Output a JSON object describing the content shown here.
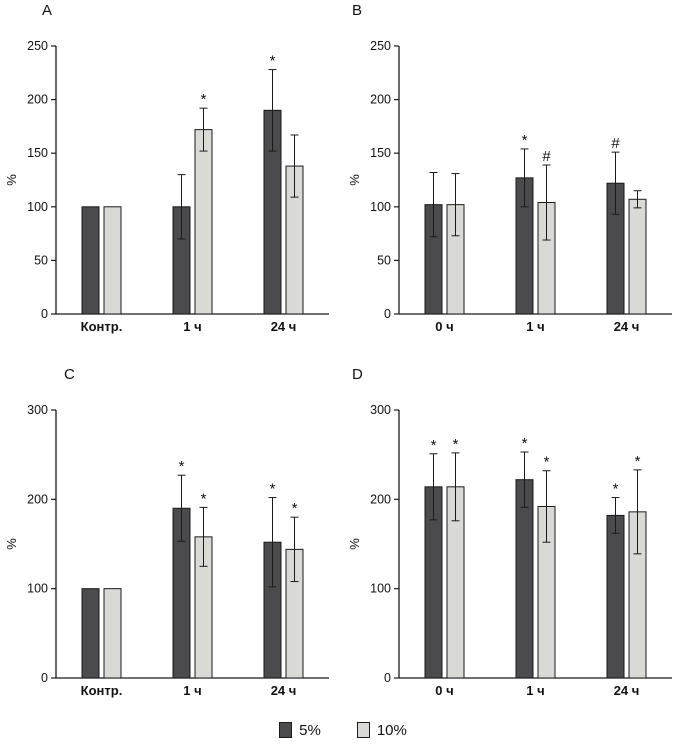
{
  "legend": {
    "items": [
      {
        "label": "5%",
        "color": "#4b4b4d"
      },
      {
        "label": "10%",
        "color": "#d9d9d6"
      }
    ]
  },
  "chart_data": [
    {
      "panel": "A",
      "type": "bar",
      "categories": [
        "Контр.",
        "1 ч",
        "24 ч"
      ],
      "ylabel": "%",
      "ylim": [
        0,
        250
      ],
      "yticks": [
        0,
        50,
        100,
        150,
        200,
        250
      ],
      "grid": false,
      "legend_position": "bottom",
      "series": [
        {
          "name": "5%",
          "color": "#4b4b4d",
          "values": [
            100,
            100,
            190
          ],
          "errors": [
            0,
            30,
            38
          ],
          "markers": [
            "",
            "",
            "*"
          ]
        },
        {
          "name": "10%",
          "color": "#d9d9d6",
          "values": [
            100,
            172,
            138
          ],
          "errors": [
            0,
            20,
            29
          ],
          "markers": [
            "",
            "*",
            ""
          ]
        }
      ]
    },
    {
      "panel": "B",
      "type": "bar",
      "categories": [
        "0 ч",
        "1 ч",
        "24 ч"
      ],
      "ylabel": "%",
      "ylim": [
        0,
        250
      ],
      "yticks": [
        0,
        50,
        100,
        150,
        200,
        250
      ],
      "grid": false,
      "legend_position": "bottom",
      "series": [
        {
          "name": "5%",
          "color": "#4b4b4d",
          "values": [
            102,
            127,
            122
          ],
          "errors": [
            30,
            27,
            29
          ],
          "markers": [
            "",
            "*",
            "#"
          ]
        },
        {
          "name": "10%",
          "color": "#d9d9d6",
          "values": [
            102,
            104,
            107
          ],
          "errors": [
            29,
            35,
            8
          ],
          "markers": [
            "",
            "#",
            ""
          ]
        }
      ]
    },
    {
      "panel": "C",
      "type": "bar",
      "categories": [
        "Контр.",
        "1 ч",
        "24 ч"
      ],
      "ylabel": "%",
      "ylim": [
        0,
        300
      ],
      "yticks": [
        0,
        100,
        200,
        300
      ],
      "grid": false,
      "legend_position": "bottom",
      "series": [
        {
          "name": "5%",
          "color": "#4b4b4d",
          "values": [
            100,
            190,
            152
          ],
          "errors": [
            0,
            37,
            50
          ],
          "markers": [
            "",
            "*",
            "*"
          ]
        },
        {
          "name": "10%",
          "color": "#d9d9d6",
          "values": [
            100,
            158,
            144
          ],
          "errors": [
            0,
            33,
            36
          ],
          "markers": [
            "",
            "*",
            "*"
          ]
        }
      ]
    },
    {
      "panel": "D",
      "type": "bar",
      "categories": [
        "0 ч",
        "1 ч",
        "24 ч"
      ],
      "ylabel": "%",
      "ylim": [
        0,
        300
      ],
      "yticks": [
        0,
        100,
        200,
        300
      ],
      "grid": false,
      "legend_position": "bottom",
      "series": [
        {
          "name": "5%",
          "color": "#4b4b4d",
          "values": [
            214,
            222,
            182
          ],
          "errors": [
            37,
            31,
            20
          ],
          "markers": [
            "*",
            "*",
            "*"
          ]
        },
        {
          "name": "10%",
          "color": "#d9d9d6",
          "values": [
            214,
            192,
            186
          ],
          "errors": [
            38,
            40,
            47
          ],
          "markers": [
            "*",
            "*",
            "*"
          ]
        }
      ]
    }
  ]
}
